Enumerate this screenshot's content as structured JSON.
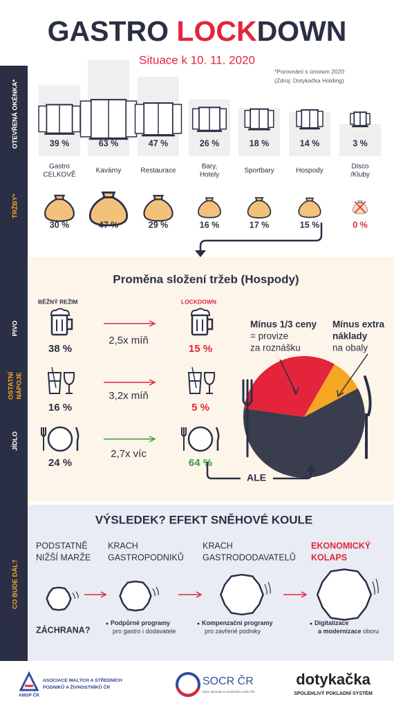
{
  "header": {
    "title_parts": [
      "GASTRO ",
      "LOCK",
      "DOWN"
    ],
    "subtitle": "Situace k 10. 11. 2020",
    "note": [
      "*Porovnání s únorem 2020",
      "(Zdroj: Dotykačka Holding)"
    ]
  },
  "sidebar": {
    "open": "OTEVŘENÁ OKÉNKA*",
    "revenue": "TRŽBY*",
    "beer": "PIVO",
    "drinks": [
      "OSTATNÍ",
      "NÁPOJE"
    ],
    "food": "JÍDLO",
    "next": "CO BUDE DÁL?"
  },
  "venues": [
    {
      "open": "39 %",
      "name": [
        "Gastro",
        "CELKOVĚ"
      ],
      "revenue": "30 %"
    },
    {
      "open": "63 %",
      "name": [
        "Kavárny"
      ],
      "revenue": "47 %"
    },
    {
      "open": "47 %",
      "name": [
        "Restaurace"
      ],
      "revenue": "29 %"
    },
    {
      "open": "26 %",
      "name": [
        "Bary,",
        "Hotely"
      ],
      "revenue": "16 %"
    },
    {
      "open": "18 %",
      "name": [
        "Sportbary"
      ],
      "revenue": "17 %"
    },
    {
      "open": "14 %",
      "name": [
        "Hospody"
      ],
      "revenue": "15 %"
    },
    {
      "open": "3 %",
      "name": [
        "Disco",
        "/Kluby"
      ],
      "revenue": "0 %"
    }
  ],
  "change": {
    "title": "Proměna složení tržeb (Hospody)",
    "normal_label": "BĚŽNÝ REŽIM",
    "lockdown_label": "LOCKDOWN",
    "rows": [
      {
        "normal": "38 %",
        "factor": "2,5x míň",
        "lockdown": "15 %"
      },
      {
        "normal": "16 %",
        "factor": "3,2x míň",
        "lockdown": "5 %"
      },
      {
        "normal": "24 %",
        "factor": "2,7x víc",
        "lockdown": "64 %"
      }
    ],
    "note_left": [
      "Mínus 1/3 ceny",
      "= provize",
      "za roznášku"
    ],
    "note_right": [
      "Mínus extra",
      "náklady",
      "na obaly"
    ],
    "but": "ALE"
  },
  "outcome": {
    "title": "VÝSLEDEK? EFEKT SNĚHOVÉ KOULE",
    "steps": [
      [
        "PODSTATNĚ",
        "NIŽŠÍ MARŽE"
      ],
      [
        "KRACH",
        "GASTROPODNIKŮ"
      ],
      [
        "KRACH",
        "GASTRODODAVATELŮ"
      ],
      [
        "EKONOMICKÝ",
        "KOLAPS"
      ]
    ],
    "rescue": "ZÁCHRANA?",
    "measures": [
      [
        {
          "bold": "Podpůrné programy"
        },
        {
          "text": "pro gastro i dodavatele"
        }
      ],
      [
        {
          "bold": "Kompenzační programy"
        },
        {
          "text": "pro zavřené podniky"
        }
      ],
      [
        {
          "bold": "Digitalizace"
        },
        {
          "bold": "a modernizace",
          "text": " oboru"
        }
      ]
    ]
  },
  "footer": {
    "amsp": [
      "ASOCIACE MALÝCH A STŘEDNÍCH",
      "PODNIKŮ A ŽIVNOSTNÍKŮ ČR"
    ],
    "amsp_short": "AMSP ČR",
    "socr": "SOCR ČR",
    "socr_sub": "Svaz obchodu a cestovního ruchu ČR",
    "dotykacka": "dotykačka",
    "dotykacka_sub": "SPOLEHLIVÝ POKLADNÍ SYSTÉM"
  }
}
